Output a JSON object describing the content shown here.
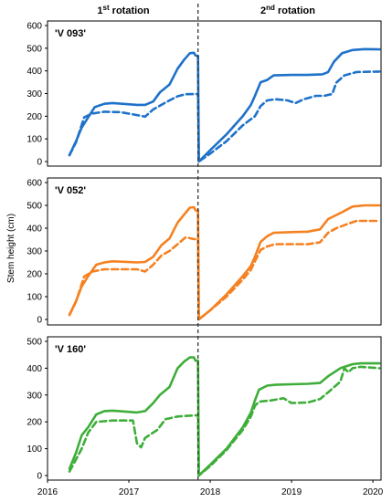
{
  "figure": {
    "rotation_labels": [
      {
        "base": "1",
        "sup": "st",
        "text": " rotation"
      },
      {
        "base": "2",
        "sup": "nd",
        "text": " rotation"
      }
    ],
    "ylabel": "Stem height (cm)",
    "harvest_date": 2017.85,
    "x_ticks": [
      2016,
      2017,
      2018,
      2019,
      2020
    ]
  },
  "chart_data": [
    {
      "type": "line",
      "title": "'V 093'",
      "ylabel": "Stem height (cm)",
      "xlim": [
        2016,
        2020.1
      ],
      "ylim": [
        0,
        600
      ],
      "y_ticks": [
        0,
        100,
        200,
        300,
        400,
        500,
        600
      ],
      "color": "#1f72c9",
      "series": [
        {
          "style": "solid",
          "points": [
            [
              2016.27,
              28
            ],
            [
              2016.35,
              90
            ],
            [
              2016.42,
              150
            ],
            [
              2016.5,
              195
            ],
            [
              2016.58,
              240
            ],
            [
              2016.7,
              255
            ],
            [
              2016.8,
              258
            ],
            [
              2017.1,
              250
            ],
            [
              2017.2,
              250
            ],
            [
              2017.3,
              265
            ],
            [
              2017.38,
              305
            ],
            [
              2017.5,
              340
            ],
            [
              2017.6,
              410
            ],
            [
              2017.68,
              450
            ],
            [
              2017.75,
              478
            ],
            [
              2017.8,
              480
            ],
            [
              2017.82,
              468
            ],
            [
              2017.85,
              465
            ],
            [
              2017.86,
              0
            ],
            [
              2018.0,
              50
            ],
            [
              2018.2,
              120
            ],
            [
              2018.4,
              200
            ],
            [
              2018.5,
              250
            ],
            [
              2018.55,
              290
            ],
            [
              2018.62,
              350
            ],
            [
              2018.7,
              360
            ],
            [
              2018.78,
              380
            ],
            [
              2019.0,
              382
            ],
            [
              2019.2,
              382
            ],
            [
              2019.38,
              385
            ],
            [
              2019.45,
              395
            ],
            [
              2019.52,
              440
            ],
            [
              2019.62,
              478
            ],
            [
              2019.75,
              492
            ],
            [
              2019.9,
              496
            ],
            [
              2020.08,
              495
            ]
          ]
        },
        {
          "style": "dashed",
          "points": [
            [
              2016.27,
              28
            ],
            [
              2016.35,
              85
            ],
            [
              2016.45,
              195
            ],
            [
              2016.55,
              212
            ],
            [
              2016.7,
              220
            ],
            [
              2016.9,
              218
            ],
            [
              2017.1,
              205
            ],
            [
              2017.2,
              198
            ],
            [
              2017.3,
              230
            ],
            [
              2017.4,
              250
            ],
            [
              2017.5,
              270
            ],
            [
              2017.6,
              288
            ],
            [
              2017.7,
              297
            ],
            [
              2017.85,
              298
            ],
            [
              2017.86,
              0
            ],
            [
              2018.0,
              35
            ],
            [
              2018.2,
              90
            ],
            [
              2018.4,
              160
            ],
            [
              2018.55,
              200
            ],
            [
              2018.62,
              245
            ],
            [
              2018.7,
              270
            ],
            [
              2018.8,
              275
            ],
            [
              2018.95,
              270
            ],
            [
              2019.05,
              258
            ],
            [
              2019.15,
              275
            ],
            [
              2019.3,
              290
            ],
            [
              2019.4,
              290
            ],
            [
              2019.5,
              298
            ],
            [
              2019.55,
              348
            ],
            [
              2019.65,
              380
            ],
            [
              2019.8,
              395
            ],
            [
              2020.08,
              397
            ]
          ]
        }
      ]
    },
    {
      "type": "line",
      "title": "'V 052'",
      "ylabel": "Stem height (cm)",
      "xlim": [
        2016,
        2020.1
      ],
      "ylim": [
        0,
        600
      ],
      "y_ticks": [
        0,
        100,
        200,
        300,
        400,
        500,
        600
      ],
      "color": "#f58121",
      "series": [
        {
          "style": "solid",
          "points": [
            [
              2016.27,
              20
            ],
            [
              2016.35,
              80
            ],
            [
              2016.42,
              145
            ],
            [
              2016.5,
              190
            ],
            [
              2016.6,
              240
            ],
            [
              2016.7,
              250
            ],
            [
              2016.8,
              255
            ],
            [
              2017.1,
              250
            ],
            [
              2017.2,
              252
            ],
            [
              2017.3,
              275
            ],
            [
              2017.4,
              325
            ],
            [
              2017.5,
              355
            ],
            [
              2017.6,
              425
            ],
            [
              2017.68,
              460
            ],
            [
              2017.75,
              490
            ],
            [
              2017.8,
              492
            ],
            [
              2017.82,
              478
            ],
            [
              2017.85,
              478
            ],
            [
              2017.86,
              0
            ],
            [
              2018.0,
              40
            ],
            [
              2018.2,
              110
            ],
            [
              2018.4,
              190
            ],
            [
              2018.5,
              235
            ],
            [
              2018.55,
              275
            ],
            [
              2018.62,
              340
            ],
            [
              2018.7,
              365
            ],
            [
              2018.78,
              380
            ],
            [
              2019.0,
              383
            ],
            [
              2019.2,
              385
            ],
            [
              2019.35,
              395
            ],
            [
              2019.45,
              440
            ],
            [
              2019.62,
              470
            ],
            [
              2019.75,
              495
            ],
            [
              2019.9,
              500
            ],
            [
              2020.08,
              500
            ]
          ]
        },
        {
          "style": "dashed",
          "points": [
            [
              2016.27,
              20
            ],
            [
              2016.35,
              78
            ],
            [
              2016.45,
              188
            ],
            [
              2016.55,
              210
            ],
            [
              2016.7,
              220
            ],
            [
              2016.9,
              220
            ],
            [
              2017.1,
              220
            ],
            [
              2017.2,
              210
            ],
            [
              2017.3,
              240
            ],
            [
              2017.4,
              280
            ],
            [
              2017.5,
              300
            ],
            [
              2017.6,
              330
            ],
            [
              2017.7,
              360
            ],
            [
              2017.8,
              352
            ],
            [
              2017.85,
              352
            ],
            [
              2017.86,
              0
            ],
            [
              2018.0,
              40
            ],
            [
              2018.2,
              100
            ],
            [
              2018.4,
              175
            ],
            [
              2018.5,
              218
            ],
            [
              2018.55,
              255
            ],
            [
              2018.62,
              305
            ],
            [
              2018.7,
              320
            ],
            [
              2018.8,
              330
            ],
            [
              2019.0,
              330
            ],
            [
              2019.2,
              330
            ],
            [
              2019.35,
              338
            ],
            [
              2019.45,
              380
            ],
            [
              2019.55,
              400
            ],
            [
              2019.7,
              420
            ],
            [
              2019.8,
              432
            ],
            [
              2020.08,
              432
            ]
          ]
        }
      ]
    },
    {
      "type": "line",
      "title": "'V 160'",
      "ylabel": "Stem height (cm)",
      "xlim": [
        2016,
        2020.1
      ],
      "ylim": [
        0,
        500
      ],
      "y_ticks": [
        0,
        100,
        200,
        300,
        400,
        500
      ],
      "color": "#3eae3a",
      "series": [
        {
          "style": "solid",
          "points": [
            [
              2016.27,
              25
            ],
            [
              2016.35,
              85
            ],
            [
              2016.42,
              150
            ],
            [
              2016.5,
              180
            ],
            [
              2016.6,
              228
            ],
            [
              2016.7,
              240
            ],
            [
              2016.8,
              242
            ],
            [
              2017.1,
              235
            ],
            [
              2017.2,
              240
            ],
            [
              2017.3,
              270
            ],
            [
              2017.38,
              300
            ],
            [
              2017.5,
              330
            ],
            [
              2017.6,
              400
            ],
            [
              2017.68,
              425
            ],
            [
              2017.75,
              440
            ],
            [
              2017.8,
              440
            ],
            [
              2017.82,
              428
            ],
            [
              2017.85,
              428
            ],
            [
              2017.86,
              0
            ],
            [
              2018.0,
              40
            ],
            [
              2018.2,
              100
            ],
            [
              2018.4,
              180
            ],
            [
              2018.5,
              235
            ],
            [
              2018.55,
              280
            ],
            [
              2018.6,
              320
            ],
            [
              2018.7,
              335
            ],
            [
              2018.8,
              338
            ],
            [
              2019.0,
              340
            ],
            [
              2019.2,
              342
            ],
            [
              2019.35,
              345
            ],
            [
              2019.45,
              370
            ],
            [
              2019.6,
              400
            ],
            [
              2019.75,
              415
            ],
            [
              2019.85,
              418
            ],
            [
              2020.08,
              418
            ]
          ]
        },
        {
          "style": "dashed",
          "points": [
            [
              2016.27,
              15
            ],
            [
              2016.35,
              60
            ],
            [
              2016.42,
              100
            ],
            [
              2016.5,
              160
            ],
            [
              2016.6,
              200
            ],
            [
              2016.8,
              205
            ],
            [
              2017.0,
              205
            ],
            [
              2017.05,
              205
            ],
            [
              2017.1,
              120
            ],
            [
              2017.15,
              105
            ],
            [
              2017.2,
              140
            ],
            [
              2017.35,
              170
            ],
            [
              2017.45,
              210
            ],
            [
              2017.6,
              220
            ],
            [
              2017.7,
              222
            ],
            [
              2017.85,
              225
            ],
            [
              2017.86,
              0
            ],
            [
              2018.0,
              35
            ],
            [
              2018.2,
              95
            ],
            [
              2018.4,
              170
            ],
            [
              2018.5,
              220
            ],
            [
              2018.55,
              260
            ],
            [
              2018.6,
              275
            ],
            [
              2018.75,
              280
            ],
            [
              2018.9,
              288
            ],
            [
              2019.0,
              270
            ],
            [
              2019.2,
              272
            ],
            [
              2019.35,
              285
            ],
            [
              2019.45,
              310
            ],
            [
              2019.6,
              350
            ],
            [
              2019.65,
              400
            ],
            [
              2019.7,
              385
            ],
            [
              2019.75,
              400
            ],
            [
              2019.85,
              405
            ],
            [
              2020.08,
              400
            ]
          ]
        }
      ]
    }
  ]
}
